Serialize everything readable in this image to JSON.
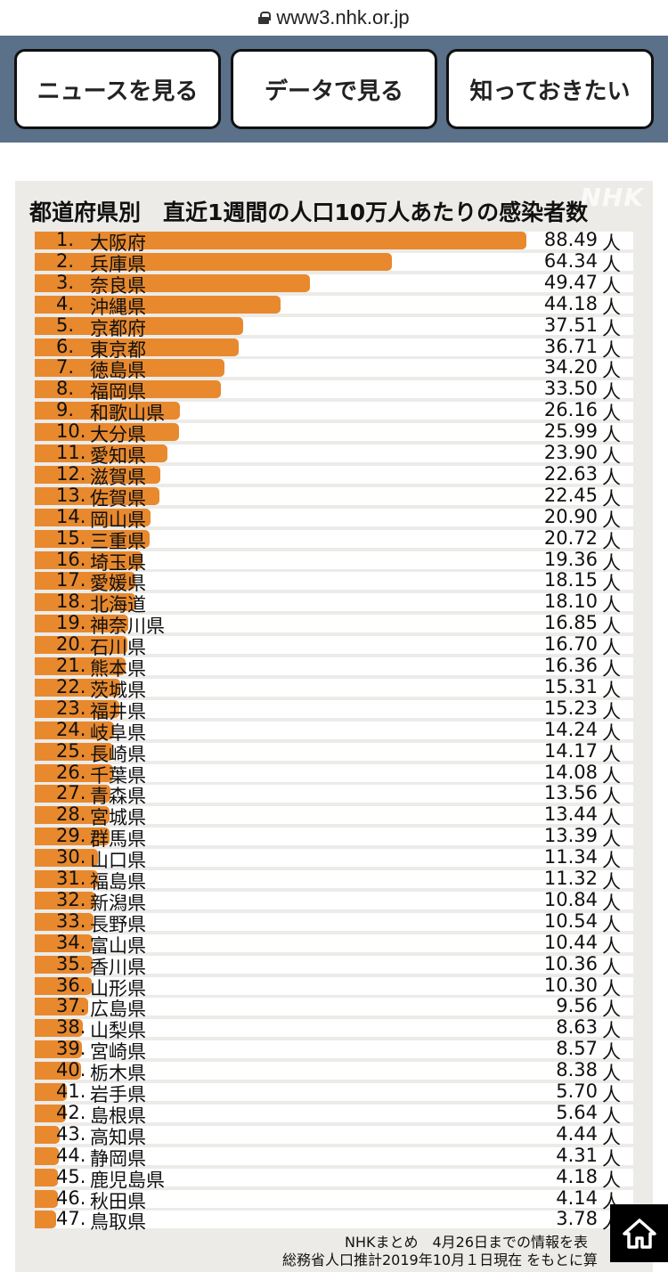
{
  "browser": {
    "url": "www3.nhk.or.jp"
  },
  "nav": {
    "news_label": "ニュースを見る",
    "data_label": "データで見る",
    "learn_label": "知っておきたい"
  },
  "watermark": "NHK",
  "chart_data": {
    "type": "bar",
    "title": "都道府県別　直近1週間の人口10万人あたりの感染者数",
    "unit": "人",
    "max": 88.49,
    "bar_color": "#e8892e",
    "rows": [
      {
        "rank": "1.",
        "name": "大阪府",
        "value": "88.49"
      },
      {
        "rank": "2.",
        "name": "兵庫県",
        "value": "64.34"
      },
      {
        "rank": "3.",
        "name": "奈良県",
        "value": "49.47"
      },
      {
        "rank": "4.",
        "name": "沖縄県",
        "value": "44.18"
      },
      {
        "rank": "5.",
        "name": "京都府",
        "value": "37.51"
      },
      {
        "rank": "6.",
        "name": "東京都",
        "value": "36.71"
      },
      {
        "rank": "7.",
        "name": "徳島県",
        "value": "34.20"
      },
      {
        "rank": "8.",
        "name": "福岡県",
        "value": "33.50"
      },
      {
        "rank": "9.",
        "name": "和歌山県",
        "value": "26.16"
      },
      {
        "rank": "10.",
        "name": "大分県",
        "value": "25.99"
      },
      {
        "rank": "11.",
        "name": "愛知県",
        "value": "23.90"
      },
      {
        "rank": "12.",
        "name": "滋賀県",
        "value": "22.63"
      },
      {
        "rank": "13.",
        "name": "佐賀県",
        "value": "22.45"
      },
      {
        "rank": "14.",
        "name": "岡山県",
        "value": "20.90"
      },
      {
        "rank": "15.",
        "name": "三重県",
        "value": "20.72"
      },
      {
        "rank": "16.",
        "name": "埼玉県",
        "value": "19.36"
      },
      {
        "rank": "17.",
        "name": "愛媛県",
        "value": "18.15"
      },
      {
        "rank": "18.",
        "name": "北海道",
        "value": "18.10"
      },
      {
        "rank": "19.",
        "name": "神奈川県",
        "value": "16.85"
      },
      {
        "rank": "20.",
        "name": "石川県",
        "value": "16.70"
      },
      {
        "rank": "21.",
        "name": "熊本県",
        "value": "16.36"
      },
      {
        "rank": "22.",
        "name": "茨城県",
        "value": "15.31"
      },
      {
        "rank": "23.",
        "name": "福井県",
        "value": "15.23"
      },
      {
        "rank": "24.",
        "name": "岐阜県",
        "value": "14.24"
      },
      {
        "rank": "25.",
        "name": "長崎県",
        "value": "14.17"
      },
      {
        "rank": "26.",
        "name": "千葉県",
        "value": "14.08"
      },
      {
        "rank": "27.",
        "name": "青森県",
        "value": "13.56"
      },
      {
        "rank": "28.",
        "name": "宮城県",
        "value": "13.44"
      },
      {
        "rank": "29.",
        "name": "群馬県",
        "value": "13.39"
      },
      {
        "rank": "30.",
        "name": "山口県",
        "value": "11.34"
      },
      {
        "rank": "31.",
        "name": "福島県",
        "value": "11.32"
      },
      {
        "rank": "32.",
        "name": "新潟県",
        "value": "10.84"
      },
      {
        "rank": "33.",
        "name": "長野県",
        "value": "10.54"
      },
      {
        "rank": "34.",
        "name": "富山県",
        "value": "10.44"
      },
      {
        "rank": "35.",
        "name": "香川県",
        "value": "10.36"
      },
      {
        "rank": "36.",
        "name": "山形県",
        "value": "10.30"
      },
      {
        "rank": "37.",
        "name": "広島県",
        "value": "9.56"
      },
      {
        "rank": "38.",
        "name": "山梨県",
        "value": "8.63"
      },
      {
        "rank": "39.",
        "name": "宮崎県",
        "value": "8.57"
      },
      {
        "rank": "40.",
        "name": "栃木県",
        "value": "8.38"
      },
      {
        "rank": "41.",
        "name": "岩手県",
        "value": "5.70"
      },
      {
        "rank": "42.",
        "name": "島根県",
        "value": "5.64"
      },
      {
        "rank": "43.",
        "name": "高知県",
        "value": "4.44"
      },
      {
        "rank": "44.",
        "name": "静岡県",
        "value": "4.31"
      },
      {
        "rank": "45.",
        "name": "鹿児島県",
        "value": "4.18"
      },
      {
        "rank": "46.",
        "name": "秋田県",
        "value": "4.14"
      },
      {
        "rank": "47.",
        "name": "鳥取県",
        "value": "3.78"
      }
    ]
  },
  "footer": {
    "line1": "NHKまとめ　4月26日までの情報を表",
    "line2": "総務省人口推計2019年10月１日現在 をもとに算"
  },
  "home_button": {
    "icon": "home-icon"
  }
}
